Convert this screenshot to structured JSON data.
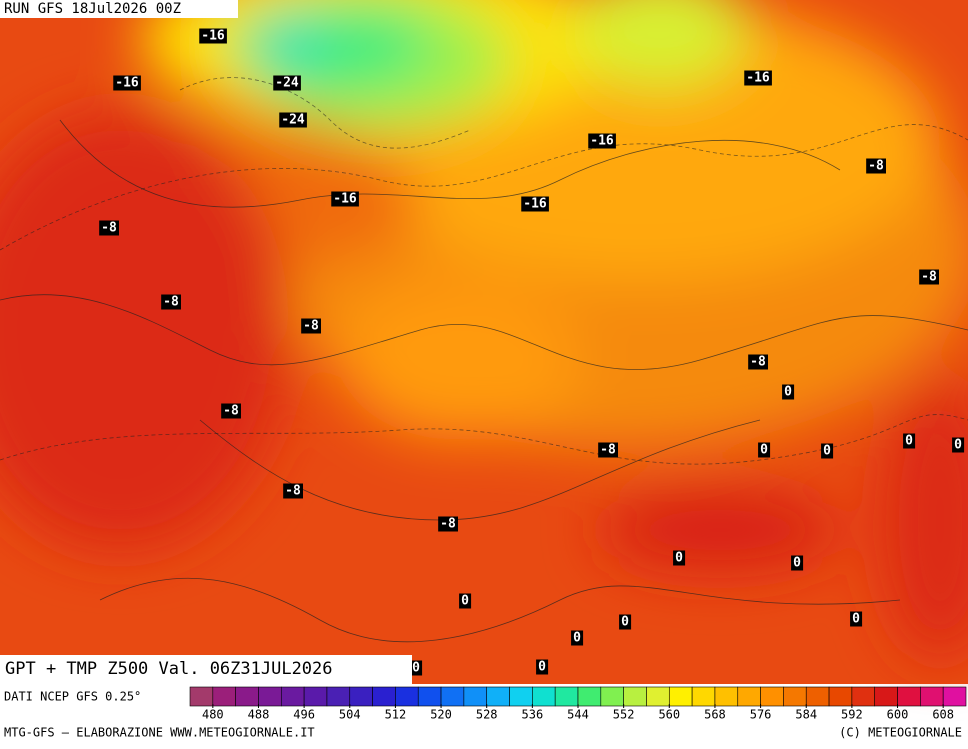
{
  "header": {
    "run": "RUN GFS 18Jul2026 00Z"
  },
  "product": {
    "title": "GPT + TMP Z500 Val. 06Z31JUL2026"
  },
  "contour_labels": [
    "-16",
    "-16",
    "-24",
    "-24",
    "-16",
    "-16",
    "-16",
    "-16",
    "-8",
    "-8",
    "-8",
    "-8",
    "-8",
    "-8",
    "-8",
    "0",
    "-8",
    "0",
    "0",
    "0",
    "0",
    "-8",
    "-8",
    "0",
    "0",
    "0",
    "0",
    "0",
    "0",
    "0",
    "0"
  ],
  "colorbar": {
    "source": "DATI NCEP GFS 0.25°",
    "colors": [
      "#a33a6b",
      "#9b1f7a",
      "#8a1a8a",
      "#7a1a96",
      "#6a1aa0",
      "#5a1aaa",
      "#4a20b4",
      "#3a20c0",
      "#2a20d0",
      "#1a30e0",
      "#1050ee",
      "#1070f4",
      "#1090f8",
      "#10b0f8",
      "#10d0f0",
      "#10e0d0",
      "#20e8a0",
      "#40ec70",
      "#80f050",
      "#b8f040",
      "#e0f030",
      "#fff000",
      "#ffd800",
      "#ffc000",
      "#ffa800",
      "#ff9000",
      "#f57800",
      "#ee6000",
      "#e84800",
      "#e03010",
      "#d81818",
      "#e01040",
      "#e01070",
      "#e010a0"
    ],
    "ticks": [
      480,
      488,
      496,
      504,
      512,
      520,
      528,
      536,
      544,
      552,
      560,
      568,
      576,
      584,
      592,
      600,
      608
    ]
  },
  "footer": {
    "left": "MTG-GFS — ELABORAZIONE WWW.METEOGIORNALE.IT",
    "right": "(C) METEOGIORNALE"
  }
}
